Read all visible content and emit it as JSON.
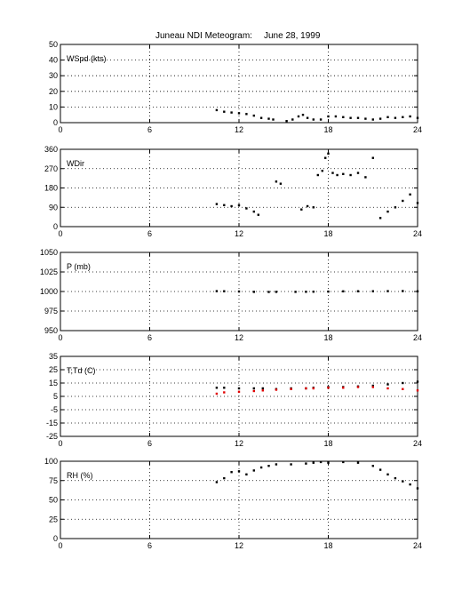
{
  "figure": {
    "title": "Juneau NDI Meteogram:",
    "date": "June 28, 1999"
  },
  "colors": {
    "primary": "#000000",
    "secondary": "#e00000",
    "grid": "#000000"
  },
  "chart_data": [
    {
      "type": "scatter",
      "label": "WSpd (kts)",
      "x_ticks": [
        0,
        6,
        12,
        18,
        24
      ],
      "y_ticks": [
        0,
        10,
        20,
        30,
        40,
        50
      ],
      "xlim": [
        0,
        24
      ],
      "ylim": [
        0,
        50
      ],
      "grid": "dotted",
      "series": [
        {
          "color": "#000000",
          "x": [
            10.5,
            11,
            11.5,
            12,
            12.5,
            13,
            13.5,
            14,
            14.3,
            15.2,
            15.6,
            16,
            16.3,
            16.6,
            17,
            17.5,
            18,
            18.5,
            19,
            19.5,
            20,
            20.5,
            21,
            21.5,
            22,
            22.5,
            23,
            23.5,
            24
          ],
          "y": [
            8,
            7,
            6.5,
            6,
            5.5,
            4.5,
            3,
            2.5,
            2,
            1,
            2,
            4,
            5,
            3,
            2,
            2,
            4,
            4,
            3.5,
            3,
            3,
            2.5,
            2,
            2.5,
            3.5,
            3,
            3.5,
            4,
            3
          ]
        }
      ]
    },
    {
      "type": "scatter",
      "label": "WDir",
      "x_ticks": [
        0,
        6,
        12,
        18,
        24
      ],
      "y_ticks": [
        0,
        90,
        180,
        270,
        360
      ],
      "xlim": [
        0,
        24
      ],
      "ylim": [
        0,
        360
      ],
      "grid": "dotted",
      "series": [
        {
          "color": "#000000",
          "x": [
            10.5,
            11,
            11.5,
            12,
            12.5,
            13,
            13.3,
            14.5,
            14.8,
            16.2,
            16.6,
            17,
            17.3,
            17.6,
            17.8,
            18,
            18.3,
            18.6,
            19,
            19.5,
            20,
            20.5,
            21,
            21.5,
            22,
            22.5,
            23,
            23.5,
            24
          ],
          "y": [
            105,
            100,
            95,
            100,
            85,
            70,
            55,
            210,
            200,
            80,
            95,
            90,
            240,
            260,
            320,
            340,
            250,
            240,
            245,
            240,
            250,
            230,
            320,
            40,
            70,
            90,
            120,
            150,
            110
          ]
        }
      ]
    },
    {
      "type": "scatter",
      "label": "P (mb)",
      "x_ticks": [
        0,
        6,
        12,
        18,
        24
      ],
      "y_ticks": [
        950,
        975,
        1000,
        1025,
        1050
      ],
      "xlim": [
        0,
        24
      ],
      "ylim": [
        950,
        1050
      ],
      "grid": "dotted",
      "series": [
        {
          "color": "#000000",
          "x": [
            10.5,
            11,
            12,
            13,
            14,
            14.5,
            15.8,
            16.5,
            17,
            18,
            19,
            20,
            21,
            22,
            23,
            24
          ],
          "y": [
            1000.5,
            1000.3,
            1000,
            999.6,
            999.4,
            999.5,
            999.6,
            999.7,
            999.8,
            999.9,
            1000.2,
            1000.3,
            1000.3,
            1000.4,
            1000.6,
            1000.2
          ]
        }
      ]
    },
    {
      "type": "scatter",
      "label": "T,Td (C)",
      "x_ticks": [
        0,
        6,
        12,
        18,
        24
      ],
      "y_ticks": [
        -25,
        -15,
        -5,
        5,
        15,
        25,
        35
      ],
      "xlim": [
        0,
        24
      ],
      "ylim": [
        -25,
        35
      ],
      "grid": "dotted",
      "series": [
        {
          "color": "#000000",
          "x": [
            10.5,
            11,
            12,
            13,
            13.6,
            14.5,
            15.5,
            16.5,
            17,
            18,
            19,
            20,
            21,
            22,
            23,
            24
          ],
          "y": [
            11.5,
            11.5,
            11,
            11,
            11,
            10.5,
            11,
            11,
            11.5,
            12,
            12,
            12.5,
            13,
            14,
            15,
            16
          ]
        },
        {
          "color": "#e00000",
          "x": [
            10.5,
            11,
            12,
            13,
            13.6,
            14.5,
            15.5,
            16.5,
            17,
            18,
            19,
            20,
            21,
            22,
            23,
            24
          ],
          "y": [
            7,
            8,
            8.5,
            9,
            9.5,
            10,
            10.5,
            11,
            11,
            11.5,
            11.5,
            12,
            12,
            11,
            10.5,
            9.5
          ]
        }
      ]
    },
    {
      "type": "scatter",
      "label": "RH (%)",
      "x_ticks": [
        0,
        6,
        12,
        18,
        24
      ],
      "y_ticks": [
        0,
        25,
        50,
        75,
        100
      ],
      "xlim": [
        0,
        24
      ],
      "ylim": [
        0,
        100
      ],
      "grid": "dotted",
      "series": [
        {
          "color": "#000000",
          "x": [
            10.5,
            11,
            11.5,
            12,
            12.5,
            13,
            13.5,
            14,
            14.5,
            15.5,
            16.5,
            17,
            17.5,
            18,
            19,
            20,
            21,
            21.5,
            22,
            22.5,
            23,
            23.5,
            24
          ],
          "y": [
            73,
            78,
            86,
            87,
            83,
            88,
            92,
            94,
            96,
            96,
            97,
            98,
            99,
            98,
            99,
            98,
            94,
            89,
            83,
            78,
            74,
            70,
            65
          ]
        }
      ]
    }
  ]
}
